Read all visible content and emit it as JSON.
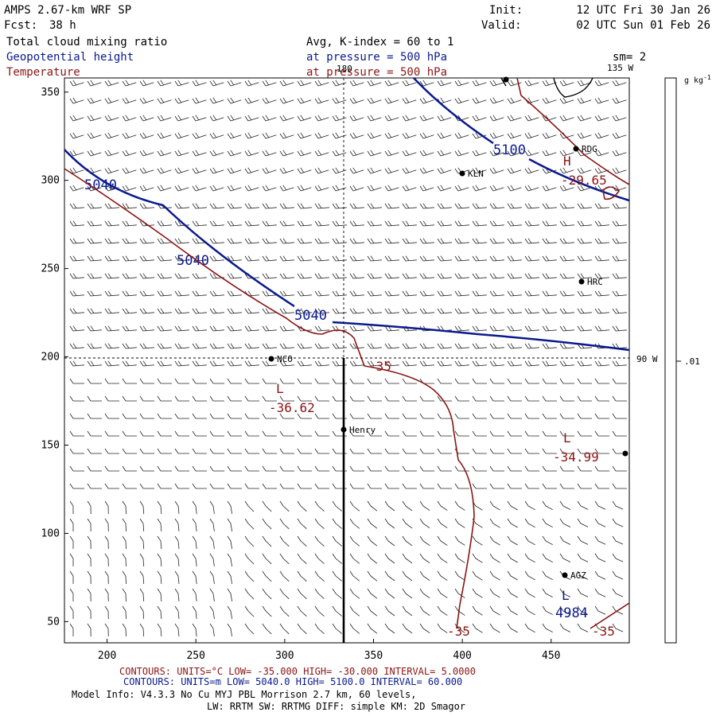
{
  "header": {
    "model": "AMPS 2.67-km WRF SP",
    "init_label": "Init:",
    "init": "12 UTC Fri 30 Jan 26",
    "fcst_label": "Fcst:",
    "fcst": "38 h",
    "valid_label": "Valid:",
    "valid": "02 UTC Sun 01 Feb 26"
  },
  "fields": {
    "field1_name": "Total cloud mixing ratio",
    "field1_level": "Avg, K-index =  60 to   1",
    "field2_name": "Geopotential height",
    "field2_level": "at pressure =  500 hPa",
    "field3_name": "Temperature",
    "field3_level": "at pressure =  500 hPa",
    "smoothing": "sm= 2",
    "field1_color": "#000000",
    "field2_color": "#0a1a8c",
    "field3_color": "#8b1414"
  },
  "map": {
    "lon_labels": [
      "180",
      "135 W",
      "90 W"
    ],
    "stations": [
      {
        "label": "RDG"
      },
      {
        "label": "KLN"
      },
      {
        "label": "HRC"
      },
      {
        "label": "NCO"
      },
      {
        "label": "Henry"
      },
      {
        "label": "AGZ"
      }
    ],
    "height_labels": [
      "5040",
      "5040",
      "5040",
      "5100",
      "4984"
    ],
    "temp_labels": [
      "-35",
      "-36.62",
      "-34.99",
      "-29.65",
      "-35",
      "-35"
    ],
    "low_markers": [
      "L",
      "L",
      "L"
    ],
    "high_markers": [
      "H"
    ]
  },
  "chart_data": {
    "type": "map",
    "x_ticks": [
      200,
      250,
      300,
      350,
      400,
      450
    ],
    "y_ticks": [
      50,
      100,
      150,
      200,
      250,
      300,
      350
    ],
    "xlim": [
      176,
      494
    ],
    "ylim": [
      38,
      358
    ],
    "colorbar": {
      "unit_label": "g kg",
      "unit_exp": "-1",
      "tick_label": ".01"
    },
    "geopotential_contours_m": [
      4984,
      5040,
      5100
    ],
    "temperature_contours_C": [
      -35
    ],
    "extremes": {
      "temp_lows": [
        -36.62,
        -34.99
      ],
      "temp_high": -29.65,
      "height_low": 4984
    }
  },
  "footer": {
    "red_contours": "CONTOURS:  UNITS=°C  LOW= -35.000     HIGH= -30.000     INTERVAL=   5.0000",
    "blue_contours": "CONTOURS:  UNITS=m  LOW=  5040.0     HIGH=  5100.0     INTERVAL=   60.000",
    "model_info": "Model Info: V4.3.3    No Cu    MYJ PBL  Morrison           2.7 km,  60 levels,",
    "model_info2": "LW: RRTM SW: RRTMG   DIFF: simple KM: 2D Smagor"
  }
}
